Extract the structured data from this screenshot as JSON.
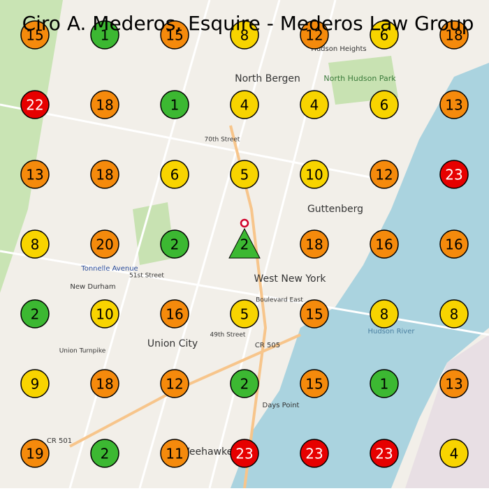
{
  "title": "Ciro A. Mederos, Esquire - Mederos Law Group",
  "grid": [
    [
      15,
      1,
      15,
      8,
      12,
      6,
      18
    ],
    [
      22,
      18,
      1,
      4,
      4,
      6,
      13
    ],
    [
      13,
      18,
      6,
      5,
      10,
      12,
      23
    ],
    [
      8,
      20,
      2,
      2,
      18,
      16,
      16
    ],
    [
      2,
      10,
      16,
      5,
      15,
      8,
      8
    ],
    [
      9,
      18,
      12,
      2,
      15,
      1,
      13
    ],
    [
      19,
      2,
      11,
      23,
      23,
      23,
      4
    ]
  ],
  "map_labels": [
    "North Bergen",
    "Guttenberg",
    "West New York",
    "Union City",
    "Tonnelle Avenue",
    "New Durham",
    "Hudson Heights",
    "North Hudson Park",
    "Days Point",
    "Hudson River",
    "CR 501",
    "CR 505",
    "70th Street",
    "51st Street",
    "49th Street",
    "Weehawken",
    "Boulevard East",
    "Union Turnpike"
  ]
}
